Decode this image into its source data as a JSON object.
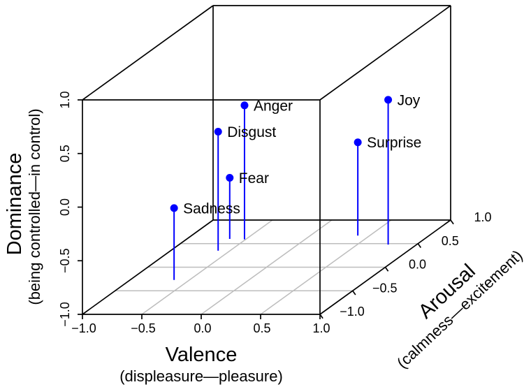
{
  "figure": {
    "background": "#ffffff"
  },
  "chart_data": {
    "type": "scatter",
    "subtype": "3d-stem-plot",
    "title": "",
    "grid": true,
    "legend": "none",
    "axes": {
      "valence": {
        "label": "Valence",
        "sublabel": "(displeasure—pleasure)",
        "range": [
          -1.0,
          1.0
        ],
        "ticks": [
          -1.0,
          -0.5,
          0.0,
          0.5,
          1.0
        ],
        "tick_labels": [
          "−1.0",
          "−0.5",
          "0.0",
          "0.5",
          "1.0"
        ]
      },
      "arousal": {
        "label": "Arousal",
        "sublabel": "(calmness—excitement)",
        "range": [
          -1.0,
          1.0
        ],
        "ticks": [
          -1.0,
          -0.5,
          0.0,
          0.5,
          1.0
        ],
        "tick_labels": [
          "−1.0",
          "−0.5",
          "0.0",
          "0.5",
          "1.0"
        ]
      },
      "dominance": {
        "label": "Dominance",
        "sublabel": "(being controlled—in control)",
        "range": [
          -1.0,
          1.0
        ],
        "ticks": [
          -1.0,
          -0.5,
          0.0,
          0.5,
          1.0
        ],
        "tick_labels": [
          "−1.0",
          "−0.5",
          "0.0",
          "0.5",
          "1.0"
        ]
      }
    },
    "points": [
      {
        "name": "Anger",
        "valence": -0.51,
        "arousal": 0.59,
        "dominance": 0.25
      },
      {
        "name": "Disgust",
        "valence": -0.6,
        "arousal": 0.35,
        "dominance": 0.11
      },
      {
        "name": "Fear",
        "valence": -0.64,
        "arousal": 0.6,
        "dominance": -0.43
      },
      {
        "name": "Sadness",
        "valence": -0.63,
        "arousal": -0.27,
        "dominance": -0.33
      },
      {
        "name": "Surprise",
        "valence": 0.4,
        "arousal": 0.67,
        "dominance": -0.13
      },
      {
        "name": "Joy",
        "valence": 0.76,
        "arousal": 0.48,
        "dominance": 0.35
      }
    ],
    "colors": {
      "point": "#0000ff",
      "stem": "#0000ff",
      "box": "#000000",
      "grid": "#bdbdbd",
      "text": "#000000"
    }
  }
}
